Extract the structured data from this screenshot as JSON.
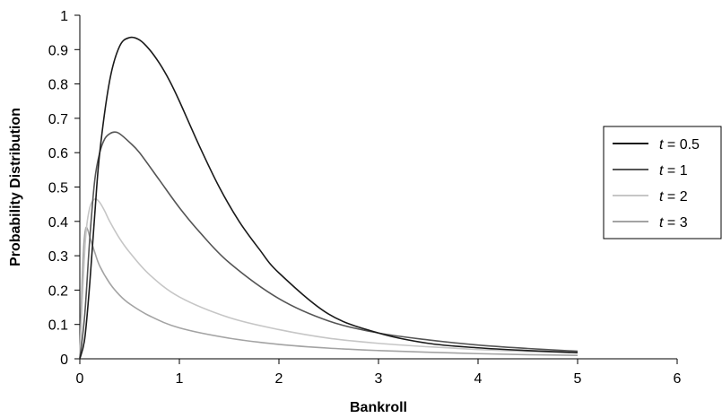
{
  "chart_data": {
    "type": "line",
    "title": "",
    "xlabel": "Bankroll",
    "ylabel": "Probability Distribution",
    "xlim": [
      0,
      6
    ],
    "ylim": [
      0,
      1
    ],
    "x_ticks": [
      "0",
      "1",
      "2",
      "3",
      "4",
      "5",
      "6"
    ],
    "y_ticks": [
      "0",
      "0.1",
      "0.2",
      "0.3",
      "0.4",
      "0.5",
      "0.6",
      "0.7",
      "0.8",
      "0.9",
      "1"
    ],
    "grid": false,
    "legend_position": "right",
    "series": [
      {
        "name": "t = 0.5",
        "legend_var": "t",
        "legend_value": "= 0.5",
        "color": "#1a1a1a",
        "x": [
          0,
          0.05,
          0.1,
          0.15,
          0.2,
          0.3,
          0.4,
          0.5,
          0.6,
          0.7,
          0.8,
          0.9,
          1.0,
          1.2,
          1.4,
          1.6,
          1.8,
          2.0,
          2.5,
          3.0,
          3.5,
          4.0,
          4.5,
          5.0
        ],
        "values": [
          0,
          0.06,
          0.22,
          0.42,
          0.6,
          0.81,
          0.91,
          0.935,
          0.928,
          0.9,
          0.86,
          0.81,
          0.75,
          0.62,
          0.5,
          0.4,
          0.32,
          0.25,
          0.13,
          0.075,
          0.045,
          0.032,
          0.024,
          0.018
        ]
      },
      {
        "name": "t = 1",
        "legend_var": "t",
        "legend_value": "= 1",
        "color": "#555555",
        "x": [
          0,
          0.05,
          0.1,
          0.15,
          0.2,
          0.25,
          0.3,
          0.35,
          0.4,
          0.5,
          0.6,
          0.8,
          1.0,
          1.2,
          1.5,
          2.0,
          2.5,
          3.0,
          3.5,
          4.0,
          4.5,
          5.0
        ],
        "values": [
          0,
          0.13,
          0.35,
          0.52,
          0.6,
          0.64,
          0.655,
          0.66,
          0.655,
          0.63,
          0.6,
          0.52,
          0.44,
          0.37,
          0.28,
          0.175,
          0.11,
          0.075,
          0.055,
          0.04,
          0.03,
          0.022
        ]
      },
      {
        "name": "t = 2",
        "legend_var": "t",
        "legend_value": "= 2",
        "color": "#c6c6c6",
        "x": [
          0,
          0.03,
          0.06,
          0.1,
          0.15,
          0.2,
          0.25,
          0.3,
          0.4,
          0.5,
          0.7,
          1.0,
          1.5,
          2.0,
          2.5,
          3.0,
          3.5,
          4.0,
          4.5,
          5.0
        ],
        "values": [
          0,
          0.2,
          0.36,
          0.44,
          0.465,
          0.455,
          0.43,
          0.4,
          0.35,
          0.31,
          0.245,
          0.18,
          0.12,
          0.085,
          0.06,
          0.045,
          0.035,
          0.027,
          0.021,
          0.017
        ]
      },
      {
        "name": "t = 3",
        "legend_var": "t",
        "legend_value": "= 3",
        "color": "#a3a3a3",
        "x": [
          0,
          0.02,
          0.04,
          0.06,
          0.08,
          0.1,
          0.15,
          0.2,
          0.3,
          0.4,
          0.5,
          0.7,
          1.0,
          1.5,
          2.0,
          2.5,
          3.0,
          3.5,
          4.0,
          4.5,
          5.0
        ],
        "values": [
          0,
          0.2,
          0.33,
          0.38,
          0.375,
          0.355,
          0.31,
          0.27,
          0.22,
          0.185,
          0.16,
          0.125,
          0.09,
          0.06,
          0.042,
          0.031,
          0.024,
          0.019,
          0.015,
          0.012,
          0.01
        ]
      }
    ]
  }
}
